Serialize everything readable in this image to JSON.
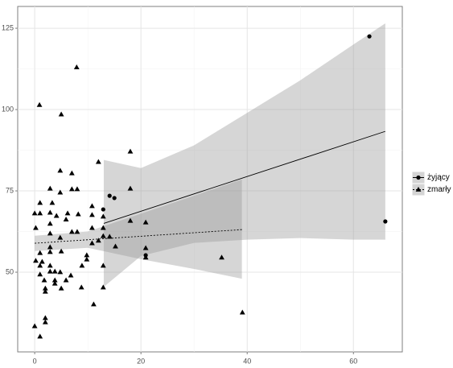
{
  "chart_data": {
    "type": "scatter",
    "xlim": [
      -3.2,
      69.2
    ],
    "ylim": [
      25.5,
      131.7
    ],
    "xticks": [
      0,
      20,
      40,
      60
    ],
    "yticks": [
      50,
      75,
      100,
      125
    ],
    "grid": true,
    "legend": "right",
    "series": [
      {
        "name": "żyjący",
        "color": "#000000",
        "marker": "circle",
        "linetype": "solid",
        "x": [
          63,
          66,
          14.1,
          15,
          12.9,
          20.9
        ],
        "y": [
          122.5,
          65.6,
          73.5,
          72.8,
          69.3,
          55.2
        ],
        "fit_x": [
          13,
          66
        ],
        "fit_y": [
          65,
          93.3
        ],
        "band_x": [
          13,
          20,
          30,
          40,
          50,
          60,
          66
        ],
        "band_lower": [
          45.5,
          55,
          59,
          60,
          60.5,
          60,
          60
        ],
        "band_upper": [
          84.5,
          82,
          89,
          99,
          109,
          120,
          126.5
        ]
      },
      {
        "name": "zmarły",
        "color": "#000000",
        "marker": "triangle",
        "linetype": "dotted",
        "x": [
          7.9,
          0.9,
          5,
          18,
          12,
          7,
          4.8,
          2.9,
          4.8,
          7,
          8,
          18,
          1,
          3.3,
          0,
          1,
          2.9,
          4.1,
          6.2,
          8.2,
          10.8,
          10.8,
          12.9,
          18,
          20.9,
          2.9,
          5.9,
          0.2,
          2.9,
          4.8,
          7,
          8,
          10.8,
          12.9,
          12.9,
          14.1,
          10.8,
          12,
          15.2,
          20.9,
          20.9,
          1,
          2.9,
          2.9,
          5,
          0.2,
          1.4,
          1,
          2.9,
          3.8,
          4.8,
          2.9,
          1,
          9.8,
          9.8,
          8.9,
          12.9,
          6.8,
          5.9,
          3.8,
          3.8,
          1.8,
          2,
          2,
          5,
          8.8,
          12.9,
          35.2,
          39.1,
          11.1,
          2,
          2,
          0,
          1
        ],
        "y": [
          113,
          101.4,
          98.5,
          87.1,
          83.9,
          80.4,
          81.2,
          75.7,
          74.5,
          75.5,
          75.5,
          75.7,
          71.3,
          71.3,
          68.1,
          68.1,
          68.3,
          67.3,
          68.1,
          67.8,
          70.3,
          67.6,
          67.1,
          65.8,
          65.3,
          64.9,
          66.2,
          63.6,
          61.9,
          60.6,
          62.4,
          62.4,
          63.6,
          63.6,
          61.1,
          60.9,
          58.9,
          59.7,
          57.9,
          57.4,
          54.5,
          55.9,
          57.7,
          56.2,
          56.4,
          53.5,
          53.2,
          52,
          52,
          50.2,
          50,
          50.2,
          49.3,
          55.2,
          53.9,
          52,
          52,
          49,
          47.5,
          46.5,
          47.5,
          47.5,
          45,
          44,
          45,
          45.3,
          45.3,
          54.5,
          37.6,
          40.1,
          35.9,
          34.6,
          33.4,
          30.2
        ],
        "fit_x": [
          0,
          39
        ],
        "fit_y": [
          58.9,
          63.1
        ],
        "band_x": [
          0,
          10,
          20,
          30,
          39
        ],
        "band_lower": [
          56.5,
          57.5,
          54,
          51,
          48
        ],
        "band_upper": [
          61.2,
          62.5,
          68,
          73.5,
          78.5
        ]
      }
    ]
  }
}
